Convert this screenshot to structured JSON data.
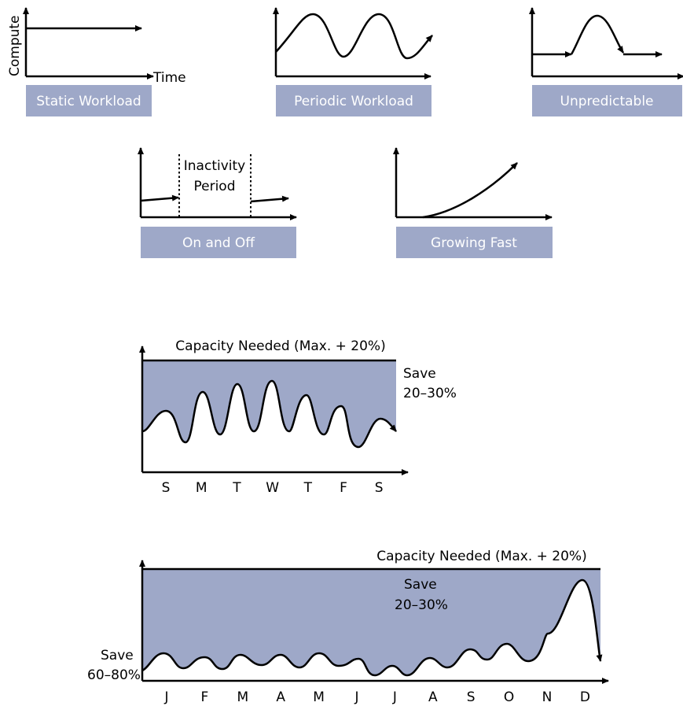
{
  "colors": {
    "label_bg": "#9ea8c8",
    "label_text": "#ffffff",
    "fill": "#9ea8c8",
    "stroke": "#000000"
  },
  "patterns": {
    "static": {
      "caption": "Static Workload",
      "y_axis_label": "Compute",
      "x_axis_label": "Time"
    },
    "periodic": {
      "caption": "Periodic Workload"
    },
    "unpredictable": {
      "caption": "Unpredictable"
    },
    "onoff": {
      "caption": "On and Off",
      "annotation_line1": "Inactivity",
      "annotation_line2": "Period"
    },
    "growing": {
      "caption": "Growing Fast"
    }
  },
  "weekly": {
    "capacity_label": "Capacity Needed (Max. + 20%)",
    "save_line1": "Save",
    "save_line2": "20–30%",
    "days": [
      "S",
      "M",
      "T",
      "W",
      "T",
      "F",
      "S"
    ]
  },
  "yearly": {
    "capacity_label": "Capacity Needed (Max. + 20%)",
    "save_top_line1": "Save",
    "save_top_line2": "20–30%",
    "save_left_line1": "Save",
    "save_left_line2": "60–80%",
    "months": [
      "J",
      "F",
      "M",
      "A",
      "M",
      "J",
      "J",
      "A",
      "S",
      "O",
      "N",
      "D"
    ]
  }
}
